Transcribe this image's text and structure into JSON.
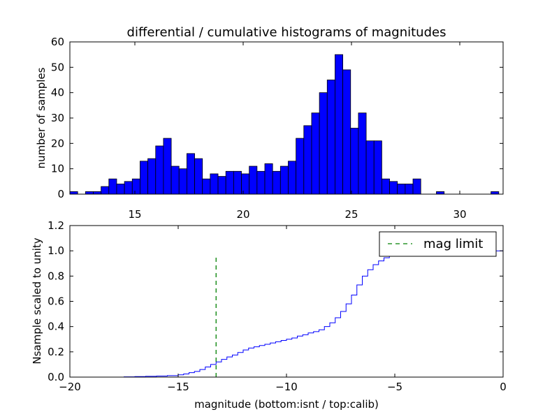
{
  "chart_data": [
    {
      "type": "bar",
      "title": "differential / cumulative histograms of magnitudes",
      "xlabel": "",
      "ylabel": "number of samples",
      "xlim": [
        12.0,
        32.0
      ],
      "ylim": [
        0,
        60
      ],
      "xticks": [
        "15",
        "20",
        "25",
        "30"
      ],
      "xtick_values": [
        15,
        20,
        25,
        30
      ],
      "yticks": [
        "0",
        "10",
        "20",
        "30",
        "40",
        "50",
        "60"
      ],
      "ytick_values": [
        0,
        10,
        20,
        30,
        40,
        50,
        60
      ],
      "bin_start": 12.0,
      "bin_width": 0.36,
      "values": [
        1,
        0,
        1,
        1,
        3,
        6,
        4,
        5,
        6,
        13,
        14,
        19,
        22,
        11,
        10,
        16,
        14,
        6,
        8,
        7,
        9,
        9,
        8,
        11,
        9,
        12,
        9,
        11,
        13,
        22,
        27,
        32,
        40,
        45,
        55,
        49,
        26,
        32,
        21,
        21,
        6,
        5,
        4,
        4,
        6,
        0,
        0,
        1,
        0,
        0,
        0,
        0,
        0,
        0,
        1,
        0
      ],
      "bar_color": "#0000ff"
    },
    {
      "type": "line",
      "xlabel": "magnitude (bottom:isnt / top:calib)",
      "ylabel": "Nsample scaled to unity",
      "xlim": [
        -20,
        0
      ],
      "ylim": [
        0.0,
        1.2
      ],
      "xticks": [
        "−20",
        "−15",
        "−10",
        "−5",
        "0"
      ],
      "xtick_values": [
        -20,
        -15,
        -10,
        -5,
        0
      ],
      "yticks": [
        "0.0",
        "0.2",
        "0.4",
        "0.6",
        "0.8",
        "1.0",
        "1.2"
      ],
      "ytick_values": [
        0.0,
        0.2,
        0.4,
        0.6,
        0.8,
        1.0,
        1.2
      ],
      "step_x": [
        -20,
        -17.5,
        -17,
        -16.5,
        -16,
        -15.5,
        -15,
        -14.75,
        -14.5,
        -14.25,
        -14,
        -13.75,
        -13.5,
        -13.25,
        -13,
        -12.75,
        -12.5,
        -12.25,
        -12,
        -11.75,
        -11.5,
        -11.25,
        -11,
        -10.75,
        -10.5,
        -10.25,
        -10,
        -9.75,
        -9.5,
        -9.25,
        -9,
        -8.75,
        -8.5,
        -8.25,
        -8,
        -7.75,
        -7.5,
        -7.25,
        -7,
        -6.75,
        -6.5,
        -6.25,
        -6,
        -5.75,
        -5.5,
        -5.25,
        -5,
        -4.5,
        -4,
        -3.5,
        -3,
        -2.5,
        -2,
        -1.5,
        -1,
        -0.5,
        0
      ],
      "step_y": [
        0.0,
        0.002,
        0.004,
        0.006,
        0.008,
        0.012,
        0.018,
        0.025,
        0.035,
        0.045,
        0.06,
        0.08,
        0.1,
        0.12,
        0.14,
        0.16,
        0.175,
        0.195,
        0.215,
        0.23,
        0.24,
        0.25,
        0.26,
        0.27,
        0.28,
        0.29,
        0.3,
        0.31,
        0.325,
        0.335,
        0.35,
        0.36,
        0.375,
        0.4,
        0.43,
        0.47,
        0.52,
        0.58,
        0.65,
        0.73,
        0.8,
        0.85,
        0.89,
        0.92,
        0.945,
        0.96,
        0.97,
        0.98,
        0.985,
        0.99,
        0.993,
        0.995,
        0.997,
        0.998,
        0.999,
        0.9995,
        1.0
      ],
      "line_color": "#0000ff",
      "mag_limit": {
        "x": -13.25,
        "y_top": 0.96,
        "label": "mag limit",
        "color": "#008000"
      }
    }
  ]
}
